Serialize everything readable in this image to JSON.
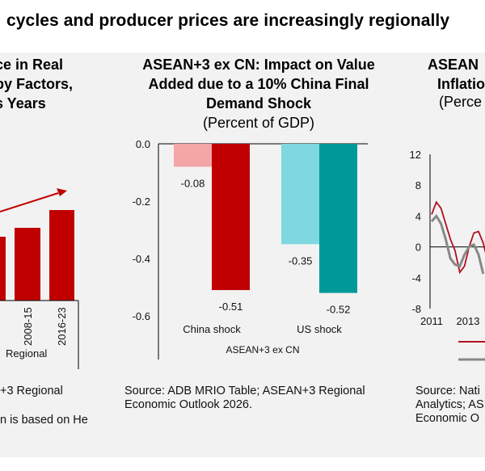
{
  "headline": "cycles and producer prices are increasingly regionally",
  "left_panel": {
    "title_lines": [
      "ce in Real",
      "by Factors,",
      "s Years",
      ")"
    ],
    "source_lines": [
      "+3 Regional",
      "n is based on He"
    ]
  },
  "middle_panel": {
    "title_lines": [
      "ASEAN+3 ex CN: Impact on Value",
      "Added due to a 10% China Final",
      "Demand Shock"
    ],
    "subtitle": "(Percent of GDP)",
    "source_lines": [
      "Source: ADB MRIO Table; ASEAN+3 Regional",
      "Economic Outlook 2026."
    ]
  },
  "right_panel": {
    "title_lines": [
      "ASEAN",
      "Inflatio",
      "(Perce"
    ],
    "source_lines": [
      "Source: Nati",
      "Analytics; AS",
      "Economic O"
    ]
  },
  "chart_data": [
    {
      "type": "bar",
      "title": "(partially visible) ...ce in Real ... by Factors, ... s Years",
      "categories": [
        "(cut off)",
        "2008-15",
        "2016-23"
      ],
      "group_label": "Regional",
      "values": [
        null,
        null,
        null
      ],
      "relative_heights_note": "values unlabeled; bars rise over time",
      "trend_arrow": true,
      "color": "#c00000"
    },
    {
      "type": "bar",
      "title": "ASEAN+3 ex CN: Impact on Value Added due to a 10% China Final Demand Shock",
      "subtitle": "(Percent of GDP)",
      "categories": [
        "China shock",
        "US shock"
      ],
      "xlabel": "ASEAN+3 ex CN",
      "ylabel": "",
      "ylim": [
        -0.6,
        0.0
      ],
      "yticks": [
        "0.0",
        "-0.2",
        "-0.4",
        "-0.6"
      ],
      "series": [
        {
          "name": "China shock",
          "values": [
            -0.08,
            -0.51
          ],
          "colors": [
            "#f4a6a6",
            "#c00000"
          ],
          "labels": [
            "-0.08",
            "-0.51"
          ]
        },
        {
          "name": "US shock",
          "values": [
            -0.35,
            -0.52
          ],
          "colors": [
            "#7fd8e0",
            "#009999"
          ],
          "labels": [
            "-0.35",
            "-0.52"
          ]
        }
      ]
    },
    {
      "type": "line",
      "title": "ASEAN... Inflatio... (Perce...",
      "ylim": [
        -8,
        12
      ],
      "yticks": [
        "12",
        "8",
        "4",
        "0",
        "-4",
        "-8"
      ],
      "xticks": [
        "2011",
        "2013"
      ],
      "series": [
        {
          "name": "(legend text cut off)",
          "color": "#b01020",
          "values": [
            4.2,
            5.8,
            5.0,
            3.0,
            1.0,
            -0.5,
            -3.3,
            -2.5,
            0.0,
            1.8,
            2.0,
            0.5,
            -2.0
          ]
        },
        {
          "name": "(legend text cut off)",
          "color": "#888888",
          "values": [
            3.3,
            4.0,
            3.0,
            1.0,
            -1.5,
            -2.3,
            -2.5,
            -1.0,
            0.0,
            0.3,
            -1.0,
            -3.5
          ]
        }
      ]
    }
  ]
}
